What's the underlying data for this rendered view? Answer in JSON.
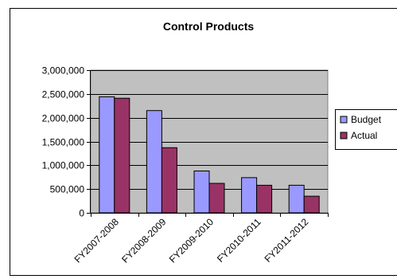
{
  "chart_data": {
    "type": "bar",
    "title": "Control Products",
    "xlabel": "",
    "ylabel": "",
    "categories": [
      "FY2007-2008",
      "FY2008-2009",
      "FY2009-2010",
      "FY2010-2011",
      "FY2011-2012"
    ],
    "series": [
      {
        "name": "Budget",
        "color": "#9999FF",
        "values": [
          2440000,
          2150000,
          880000,
          740000,
          580000
        ]
      },
      {
        "name": "Actual",
        "color": "#993366",
        "values": [
          2410000,
          1370000,
          620000,
          580000,
          350000
        ]
      }
    ],
    "ylim": [
      0,
      3000000
    ],
    "yticks": [
      0,
      500000,
      1000000,
      1500000,
      2000000,
      2500000,
      3000000
    ],
    "ytick_labels": [
      "0",
      "500,000",
      "1,000,000",
      "1,500,000",
      "2,000,000",
      "2,500,000",
      "3,000,000"
    ],
    "grid": true,
    "legend_position": "right",
    "plot_background": "#C0C0C0"
  }
}
